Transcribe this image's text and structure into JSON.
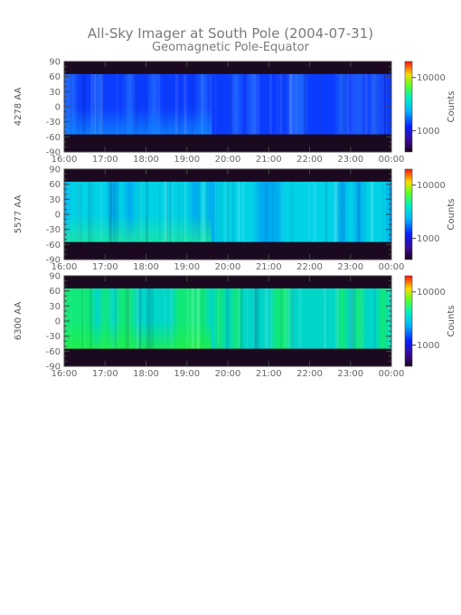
{
  "figure": {
    "title": "All-Sky Imager at South Pole (2004-07-31)",
    "subtitle": "Geomagnetic Pole-Equator"
  },
  "chart_data": [
    {
      "type": "heatmap",
      "ylabel": "4278 AA",
      "x_ticks": [
        "16:00",
        "17:00",
        "18:00",
        "19:00",
        "20:00",
        "21:00",
        "22:00",
        "23:00",
        "00:00"
      ],
      "y_ticks": [
        90,
        60,
        30,
        0,
        -30,
        -60,
        -90
      ],
      "ylim": [
        -90,
        90
      ],
      "colorbar": {
        "label": "Counts",
        "ticks": [
          10000,
          1000
        ],
        "scale": "log",
        "range": [
          400,
          20000
        ]
      },
      "band": [
        -55,
        65
      ],
      "base_color": "#0a3cff",
      "variation_color": "#1e64ff",
      "lower_edge_color": "#0f8cff"
    },
    {
      "type": "heatmap",
      "ylabel": "5577 AA",
      "x_ticks": [
        "16:00",
        "17:00",
        "18:00",
        "19:00",
        "20:00",
        "21:00",
        "22:00",
        "23:00",
        "00:00"
      ],
      "y_ticks": [
        90,
        60,
        30,
        0,
        -30,
        -60,
        -90
      ],
      "ylim": [
        -90,
        90
      ],
      "colorbar": {
        "label": "Counts",
        "ticks": [
          10000,
          1000
        ],
        "scale": "log",
        "range": [
          400,
          20000
        ]
      },
      "band": [
        -55,
        65
      ],
      "base_color": "#00d2e6",
      "variation_color": "#00aaf0",
      "lower_edge_color": "#20e89a"
    },
    {
      "type": "heatmap",
      "ylabel": "6300 AA",
      "x_ticks": [
        "16:00",
        "17:00",
        "18:00",
        "19:00",
        "20:00",
        "21:00",
        "22:00",
        "23:00",
        "00:00"
      ],
      "y_ticks": [
        90,
        60,
        30,
        0,
        -30,
        -60,
        -90
      ],
      "ylim": [
        -90,
        90
      ],
      "colorbar": {
        "label": "Counts",
        "ticks": [
          10000,
          1000
        ],
        "scale": "log",
        "range": [
          400,
          20000
        ]
      },
      "band": [
        -55,
        65
      ],
      "base_color": "#00d6c8",
      "variation_color": "#10e878",
      "lower_edge_color": "#22f040"
    }
  ]
}
